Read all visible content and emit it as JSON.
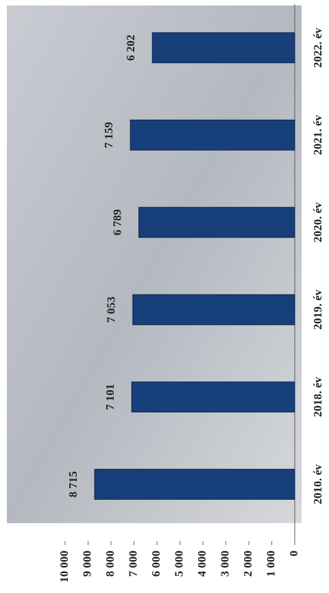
{
  "chart_data": {
    "type": "bar",
    "categories": [
      "2010. év",
      "2018. év",
      "2019. év",
      "2020. év",
      "2021. év",
      "2022. év"
    ],
    "values": [
      8715,
      7101,
      7053,
      6789,
      7159,
      6202
    ],
    "value_labels": [
      "8 715",
      "7 101",
      "7 053",
      "6 789",
      "7 159",
      "6 202"
    ],
    "color": "#173f7a",
    "ylim": [
      0,
      10000
    ],
    "yticks": [
      0,
      {
        "value": 1000,
        "label": "1 000"
      },
      {
        "value": 2000,
        "label": "2 000"
      },
      {
        "value": 3000,
        "label": "3 000"
      },
      {
        "value": 4000,
        "label": "4 000"
      },
      {
        "value": 5000,
        "label": "5 000"
      },
      {
        "value": 6000,
        "label": "6 000"
      },
      {
        "value": 7000,
        "label": "7 000"
      },
      {
        "value": 8000,
        "label": "8 000"
      },
      {
        "value": 9000,
        "label": "9 000"
      },
      {
        "value": 10000,
        "label": "10 000"
      }
    ]
  }
}
